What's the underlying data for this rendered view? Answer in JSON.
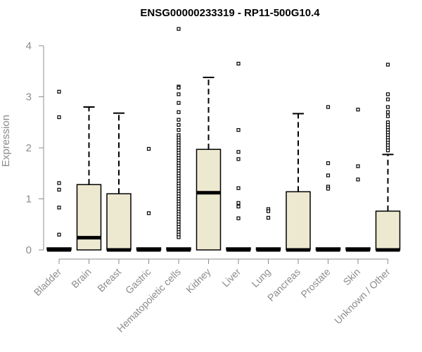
{
  "chart_data": {
    "type": "box",
    "title": "ENSG00000233319 - RP11-500G10.4",
    "ylabel": "Expression",
    "xlabel": "",
    "ylim": [
      0,
      4.35
    ],
    "yticks": [
      0,
      1,
      2,
      3,
      4
    ],
    "colors": {
      "box_fill": "#ede8d0",
      "box_stroke": "#000000",
      "axis": "#8c8c8c"
    },
    "categories": [
      {
        "name": "Bladder",
        "q1": 0,
        "median": 0,
        "q3": 0,
        "whisker_low": 0,
        "whisker_high": 0,
        "outliers": [
          3.1,
          2.6,
          1.31,
          1.18,
          0.83,
          0.3
        ]
      },
      {
        "name": "Brain",
        "q1": 0,
        "median": 0.24,
        "q3": 1.28,
        "whisker_low": 0,
        "whisker_high": 2.8,
        "outliers": []
      },
      {
        "name": "Breast",
        "q1": 0,
        "median": 0,
        "q3": 1.1,
        "whisker_low": 0,
        "whisker_high": 2.68,
        "outliers": []
      },
      {
        "name": "Gastric",
        "q1": 0,
        "median": 0,
        "q3": 0,
        "whisker_low": 0,
        "whisker_high": 0,
        "outliers": [
          1.98,
          0.72
        ]
      },
      {
        "name": "Hematopoietic cells",
        "q1": 0,
        "median": 0,
        "q3": 0,
        "whisker_low": 0,
        "whisker_high": 0,
        "outliers": [
          4.33,
          3.2,
          3.18,
          3.05,
          2.88,
          2.7,
          2.55,
          2.45,
          2.35,
          2.25,
          2.2,
          2.15,
          2.1,
          2.05,
          2.0,
          1.95,
          1.9,
          1.85,
          1.8,
          1.75,
          1.7,
          1.65,
          1.6,
          1.55,
          1.5,
          1.45,
          1.4,
          1.35,
          1.3,
          1.25,
          1.2,
          1.15,
          1.1,
          1.05,
          1.0,
          0.95,
          0.9,
          0.85,
          0.8,
          0.75,
          0.7,
          0.65,
          0.6,
          0.55,
          0.5,
          0.45,
          0.4,
          0.35,
          0.3,
          0.25
        ]
      },
      {
        "name": "Kidney",
        "q1": 0,
        "median": 1.12,
        "q3": 1.97,
        "whisker_low": 0,
        "whisker_high": 3.38,
        "outliers": []
      },
      {
        "name": "Liver",
        "q1": 0,
        "median": 0,
        "q3": 0,
        "whisker_low": 0,
        "whisker_high": 0,
        "outliers": [
          3.65,
          2.35,
          1.92,
          1.78,
          1.21,
          0.92,
          0.85,
          0.62
        ]
      },
      {
        "name": "Lung",
        "q1": 0,
        "median": 0,
        "q3": 0,
        "whisker_low": 0,
        "whisker_high": 0,
        "outliers": [
          0.8,
          0.76,
          0.63
        ]
      },
      {
        "name": "Pancreas",
        "q1": 0,
        "median": 0,
        "q3": 1.14,
        "whisker_low": 0,
        "whisker_high": 2.67,
        "outliers": []
      },
      {
        "name": "Prostate",
        "q1": 0,
        "median": 0,
        "q3": 0,
        "whisker_low": 0,
        "whisker_high": 0,
        "outliers": [
          2.8,
          1.7,
          1.46,
          1.24,
          1.2
        ]
      },
      {
        "name": "Skin",
        "q1": 0,
        "median": 0,
        "q3": 0,
        "whisker_low": 0,
        "whisker_high": 0,
        "outliers": [
          2.75,
          1.64,
          1.38
        ]
      },
      {
        "name": "Unknown / Other",
        "q1": 0,
        "median": 0,
        "q3": 0.76,
        "whisker_low": 0,
        "whisker_high": 1.87,
        "outliers": [
          3.63,
          3.05,
          2.95,
          2.8,
          2.7,
          2.62,
          2.5,
          2.45,
          2.4,
          2.35,
          2.3,
          2.25,
          2.2,
          2.15,
          2.1,
          2.05,
          2.0,
          1.95
        ]
      }
    ]
  }
}
